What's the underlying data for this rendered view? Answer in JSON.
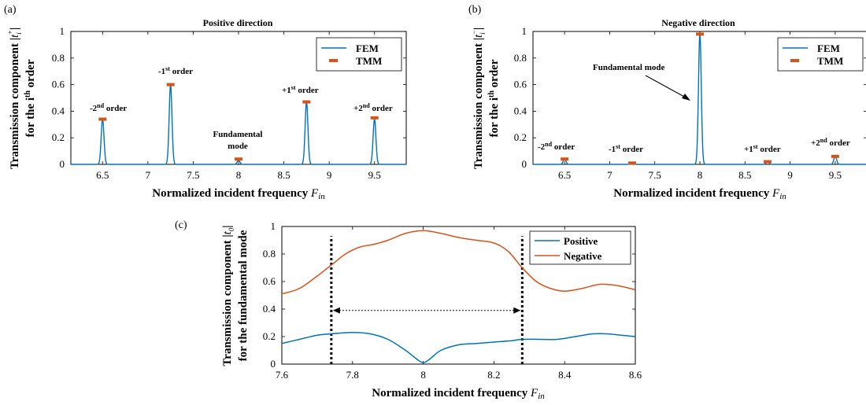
{
  "colors": {
    "fem": "#0072BD",
    "tmm": "#D95319",
    "positive": "#0072BD",
    "negative": "#D95319"
  },
  "panels": {
    "a": {
      "id": "(a)",
      "title": "Positive direction"
    },
    "b": {
      "id": "(b)",
      "title": "Negative direction"
    },
    "c": {
      "id": "(c)"
    }
  },
  "chart_data": [
    {
      "panel": "(a)",
      "type": "line",
      "title": "Positive direction",
      "xlabel": "Normalized incident frequency F_in",
      "ylabel": "Transmission component |t_i^+| for the i^th order",
      "xlim": [
        6.15,
        9.85
      ],
      "ylim": [
        0,
        1
      ],
      "xticks": [
        "6.5",
        "7",
        "7.5",
        "8",
        "8.5",
        "9",
        "9.5"
      ],
      "yticks": [
        "0",
        "0.2",
        "0.4",
        "0.6",
        "0.8",
        "1"
      ],
      "legend": {
        "position": "top-right",
        "entries": [
          "FEM",
          "TMM"
        ]
      },
      "series": [
        {
          "name": "FEM",
          "kind": "peaks",
          "peak_width": 0.022,
          "x": [
            6.5,
            7.25,
            8.0,
            8.75,
            9.5
          ],
          "y": [
            0.34,
            0.6,
            0.03,
            0.47,
            0.34
          ]
        },
        {
          "name": "TMM",
          "kind": "markers",
          "x": [
            6.5,
            7.25,
            8.0,
            8.75,
            9.5
          ],
          "y": [
            0.34,
            0.6,
            0.04,
            0.47,
            0.35
          ]
        }
      ],
      "annotations": [
        {
          "base": "-2",
          "sup": "nd",
          "rest": " order"
        },
        {
          "base": "-1",
          "sup": "st",
          "rest": " order"
        },
        {
          "line1": "Fundamental",
          "line2": "mode"
        },
        {
          "base": "+1",
          "sup": "st",
          "rest": " order"
        },
        {
          "base": "+2",
          "sup": "nd",
          "rest": " order"
        }
      ]
    },
    {
      "panel": "(b)",
      "type": "line",
      "title": "Negative direction",
      "xlabel": "Normalized incident frequency F_in",
      "ylabel": "Transmission component |t_i^-| for the i^th order",
      "xlim": [
        6.15,
        9.85
      ],
      "ylim": [
        0,
        1
      ],
      "xticks": [
        "6.5",
        "7",
        "7.5",
        "8",
        "8.5",
        "9",
        "9.5"
      ],
      "yticks": [
        "0",
        "0.2",
        "0.4",
        "0.6",
        "0.8",
        "1"
      ],
      "legend": {
        "position": "top-right",
        "entries": [
          "FEM",
          "TMM"
        ]
      },
      "series": [
        {
          "name": "FEM",
          "kind": "peaks",
          "peak_width": 0.022,
          "x": [
            6.5,
            7.25,
            8.0,
            8.75,
            9.5
          ],
          "y": [
            0.04,
            0.01,
            0.98,
            0.02,
            0.06
          ]
        },
        {
          "name": "TMM",
          "kind": "markers",
          "x": [
            6.5,
            7.25,
            8.0,
            8.75,
            9.5
          ],
          "y": [
            0.04,
            0.01,
            0.98,
            0.02,
            0.06
          ]
        }
      ],
      "annotations": [
        {
          "base": "-2",
          "sup": "nd",
          "rest": " order"
        },
        {
          "base": "-1",
          "sup": "st",
          "rest": " order"
        },
        {
          "line1": "Fundamental mode"
        },
        {
          "base": "+1",
          "sup": "st",
          "rest": " order"
        },
        {
          "base": "+2",
          "sup": "nd",
          "rest": " order"
        }
      ]
    },
    {
      "panel": "(c)",
      "type": "line",
      "xlabel": "Normalized incident frequency F_in",
      "ylabel": "Transmission component |t_0| for the fundamental mode",
      "xlim": [
        7.6,
        8.6
      ],
      "ylim": [
        0,
        1
      ],
      "xticks": [
        "7.6",
        "7.8",
        "8",
        "8.2",
        "8.4",
        "8.6"
      ],
      "yticks": [
        "0",
        "0.2",
        "0.4",
        "0.6",
        "0.8",
        "1"
      ],
      "legend": {
        "position": "top-right",
        "entries": [
          "Positive",
          "Negative"
        ]
      },
      "vlines": [
        7.74,
        8.28
      ],
      "double_arrow": {
        "x": [
          7.74,
          8.28
        ],
        "y": 0.39
      },
      "series": [
        {
          "name": "Positive",
          "x": [
            7.6,
            7.65,
            7.7,
            7.74,
            7.8,
            7.85,
            7.9,
            7.95,
            7.98,
            8.0,
            8.02,
            8.05,
            8.1,
            8.15,
            8.2,
            8.25,
            8.28,
            8.33,
            8.38,
            8.43,
            8.48,
            8.52,
            8.56,
            8.6
          ],
          "y": [
            0.15,
            0.18,
            0.21,
            0.22,
            0.23,
            0.22,
            0.18,
            0.1,
            0.04,
            0.01,
            0.04,
            0.1,
            0.14,
            0.15,
            0.16,
            0.17,
            0.18,
            0.18,
            0.18,
            0.2,
            0.22,
            0.22,
            0.21,
            0.2
          ]
        },
        {
          "name": "Negative",
          "x": [
            7.6,
            7.65,
            7.7,
            7.74,
            7.78,
            7.82,
            7.86,
            7.9,
            7.95,
            8.0,
            8.05,
            8.1,
            8.15,
            8.2,
            8.24,
            8.28,
            8.32,
            8.36,
            8.4,
            8.45,
            8.5,
            8.55,
            8.6
          ],
          "y": [
            0.51,
            0.55,
            0.64,
            0.72,
            0.8,
            0.85,
            0.87,
            0.9,
            0.95,
            0.97,
            0.95,
            0.92,
            0.9,
            0.88,
            0.82,
            0.7,
            0.6,
            0.55,
            0.53,
            0.55,
            0.58,
            0.57,
            0.54
          ]
        }
      ]
    }
  ]
}
